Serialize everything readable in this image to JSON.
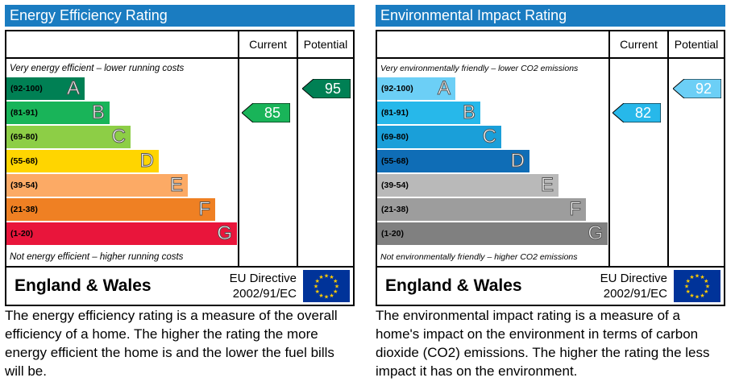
{
  "energy_chart": {
    "title": "Energy Efficiency Rating",
    "col_current": "Current",
    "col_potential": "Potential",
    "top_note": "Very energy efficient – lower running costs",
    "bottom_note": "Not energy efficient – higher running costs",
    "bands": [
      {
        "range": "(92-100)",
        "letter": "A",
        "color": "#008054"
      },
      {
        "range": "(81-91)",
        "letter": "B",
        "color": "#19b459"
      },
      {
        "range": "(69-80)",
        "letter": "C",
        "color": "#8dce46"
      },
      {
        "range": "(55-68)",
        "letter": "D",
        "color": "#ffd500"
      },
      {
        "range": "(39-54)",
        "letter": "E",
        "color": "#fcaa65"
      },
      {
        "range": "(21-38)",
        "letter": "F",
        "color": "#ef8023"
      },
      {
        "range": "(1-20)",
        "letter": "G",
        "color": "#e9153b"
      }
    ],
    "current": {
      "value": "85",
      "band": "B",
      "color": "#19b459"
    },
    "potential": {
      "value": "95",
      "band": "A",
      "color": "#008054"
    },
    "region": "England & Wales",
    "directive_line1": "EU Directive",
    "directive_line2": "2002/91/EC"
  },
  "env_chart": {
    "title": "Environmental Impact Rating",
    "col_current": "Current",
    "col_potential": "Potential",
    "top_note": "Very environmentally friendly – lower CO2 emissions",
    "bottom_note": "Not environmentally friendly – higher CO2 emissions",
    "bands": [
      {
        "range": "(92-100)",
        "letter": "A",
        "color": "#6ccff6"
      },
      {
        "range": "(81-91)",
        "letter": "B",
        "color": "#27b8ea"
      },
      {
        "range": "(69-80)",
        "letter": "C",
        "color": "#1a9fd9"
      },
      {
        "range": "(55-68)",
        "letter": "D",
        "color": "#0f6db6"
      },
      {
        "range": "(39-54)",
        "letter": "E",
        "color": "#b9b9b9"
      },
      {
        "range": "(21-38)",
        "letter": "F",
        "color": "#9d9d9d"
      },
      {
        "range": "(1-20)",
        "letter": "G",
        "color": "#808080"
      }
    ],
    "current": {
      "value": "82",
      "band": "B",
      "color": "#27b8ea"
    },
    "potential": {
      "value": "92",
      "band": "A",
      "color": "#6ccff6"
    },
    "region": "England & Wales",
    "directive_line1": "EU Directive",
    "directive_line2": "2002/91/EC"
  },
  "captions": {
    "energy": "The energy efficiency rating is a measure of the overall efficiency of a home.  The higher the rating the more energy efficient the home is and the lower the fuel bills will be.",
    "env": "The environmental impact rating is a measure of a home's impact on the environment in terms of carbon dioxide (CO2) emissions.  The higher the rating the less impact it has on the environment."
  },
  "icons": {
    "eu_flag": "eu-flag-icon"
  }
}
